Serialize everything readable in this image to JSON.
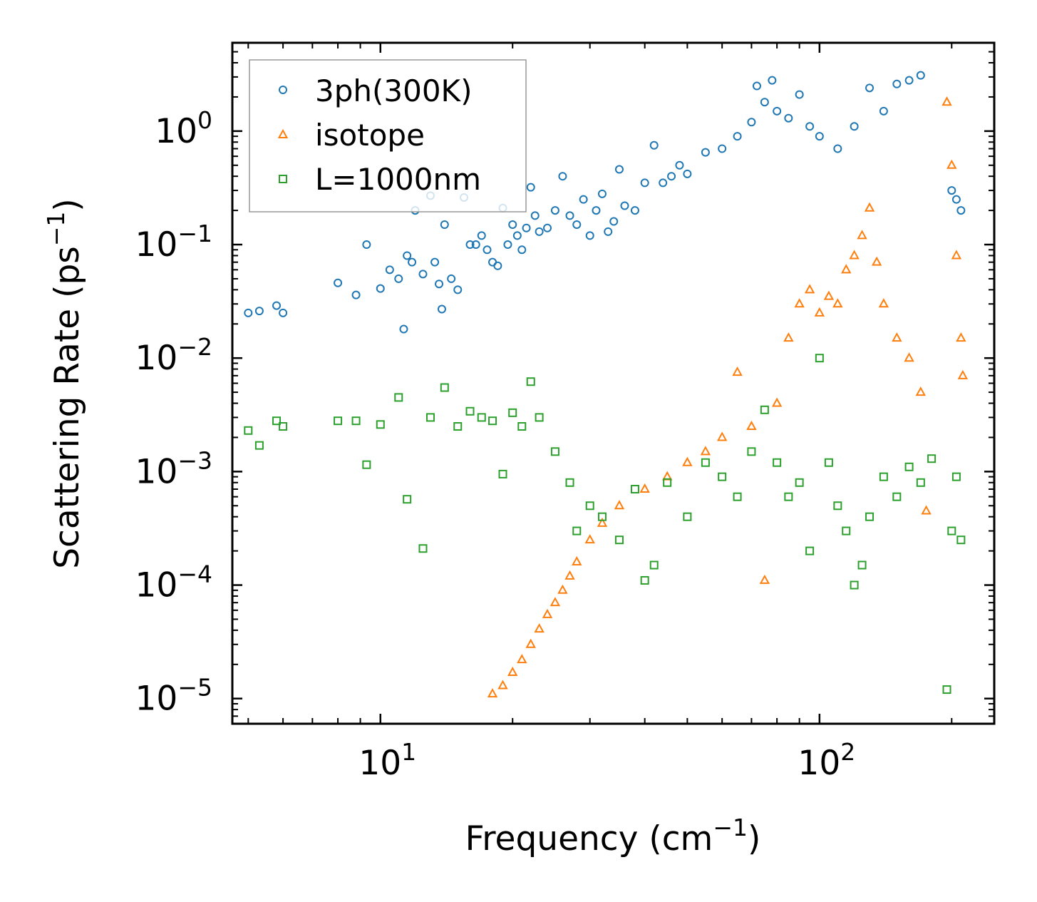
{
  "chart_data": {
    "type": "scatter",
    "title": "",
    "xlabel": "Frequency (cm",
    "xlabel_sup": "−1",
    "xlabel_end": ")",
    "ylabel": "Scattering Rate (ps",
    "ylabel_sup": "−1",
    "ylabel_end": ")",
    "xscale": "log",
    "yscale": "log",
    "xlim": [
      4.6,
      250
    ],
    "ylim": [
      6e-06,
      6
    ],
    "x_ticks": [
      {
        "value": 10,
        "base": "10",
        "exp": "1"
      },
      {
        "value": 100,
        "base": "10",
        "exp": "2"
      }
    ],
    "y_ticks": [
      {
        "value": 1,
        "base": "10",
        "exp": "0"
      },
      {
        "value": 0.1,
        "base": "10",
        "exp": "−1"
      },
      {
        "value": 0.01,
        "base": "10",
        "exp": "−2"
      },
      {
        "value": 0.001,
        "base": "10",
        "exp": "−3"
      },
      {
        "value": 0.0001,
        "base": "10",
        "exp": "−4"
      },
      {
        "value": 1e-05,
        "base": "10",
        "exp": "−5"
      }
    ],
    "legend_position": "top-left",
    "series": [
      {
        "name": "3ph(300K)",
        "marker": "circle",
        "color": "#1f77b4",
        "points": [
          [
            5,
            0.025
          ],
          [
            5.3,
            0.026
          ],
          [
            5.8,
            0.029
          ],
          [
            6,
            0.025
          ],
          [
            8,
            0.046
          ],
          [
            8.8,
            0.036
          ],
          [
            9.3,
            0.1
          ],
          [
            10,
            0.041
          ],
          [
            10.5,
            0.06
          ],
          [
            11,
            0.05
          ],
          [
            11.3,
            0.018
          ],
          [
            11.5,
            0.08
          ],
          [
            11.8,
            0.07
          ],
          [
            12,
            0.2
          ],
          [
            12.5,
            0.055
          ],
          [
            13,
            0.27
          ],
          [
            13.3,
            0.07
          ],
          [
            13.6,
            0.045
          ],
          [
            13.8,
            0.027
          ],
          [
            14,
            0.15
          ],
          [
            14.5,
            0.05
          ],
          [
            15,
            0.04
          ],
          [
            15.5,
            0.26
          ],
          [
            16,
            0.1
          ],
          [
            16.5,
            0.1
          ],
          [
            17,
            0.12
          ],
          [
            17.5,
            0.09
          ],
          [
            18,
            0.07
          ],
          [
            18.5,
            0.065
          ],
          [
            19,
            0.21
          ],
          [
            19.5,
            0.1
          ],
          [
            20,
            0.15
          ],
          [
            20.5,
            0.12
          ],
          [
            21,
            0.09
          ],
          [
            21.5,
            0.14
          ],
          [
            22,
            0.32
          ],
          [
            22.5,
            0.18
          ],
          [
            23,
            0.13
          ],
          [
            24,
            0.14
          ],
          [
            25,
            0.2
          ],
          [
            26,
            0.4
          ],
          [
            27,
            0.18
          ],
          [
            28,
            0.15
          ],
          [
            29,
            0.25
          ],
          [
            30,
            0.12
          ],
          [
            31,
            0.2
          ],
          [
            32,
            0.28
          ],
          [
            33,
            0.13
          ],
          [
            34,
            0.16
          ],
          [
            35,
            0.46
          ],
          [
            36,
            0.22
          ],
          [
            38,
            0.2
          ],
          [
            40,
            0.35
          ],
          [
            42,
            0.75
          ],
          [
            44,
            0.35
          ],
          [
            46,
            0.4
          ],
          [
            48,
            0.5
          ],
          [
            50,
            0.42
          ],
          [
            55,
            0.65
          ],
          [
            60,
            0.7
          ],
          [
            65,
            0.9
          ],
          [
            70,
            1.2
          ],
          [
            72,
            2.5
          ],
          [
            75,
            1.8
          ],
          [
            78,
            2.8
          ],
          [
            80,
            1.5
          ],
          [
            85,
            1.3
          ],
          [
            90,
            2.1
          ],
          [
            95,
            1.1
          ],
          [
            100,
            0.9
          ],
          [
            110,
            0.7
          ],
          [
            120,
            1.1
          ],
          [
            130,
            2.4
          ],
          [
            140,
            1.5
          ],
          [
            150,
            2.6
          ],
          [
            160,
            2.8
          ],
          [
            170,
            3.1
          ],
          [
            200,
            0.3
          ],
          [
            205,
            0.25
          ],
          [
            210,
            0.2
          ]
        ]
      },
      {
        "name": "isotope",
        "marker": "triangle",
        "color": "#ff7f0e",
        "points": [
          [
            18,
            1.1e-05
          ],
          [
            19,
            1.3e-05
          ],
          [
            20,
            1.7e-05
          ],
          [
            21,
            2.2e-05
          ],
          [
            22,
            3e-05
          ],
          [
            23,
            4.1e-05
          ],
          [
            24,
            5.5e-05
          ],
          [
            25,
            7e-05
          ],
          [
            26,
            9e-05
          ],
          [
            27,
            0.00012
          ],
          [
            28,
            0.00016
          ],
          [
            30,
            0.00025
          ],
          [
            32,
            0.00035
          ],
          [
            35,
            0.0005
          ],
          [
            40,
            0.0007
          ],
          [
            45,
            0.0009
          ],
          [
            50,
            0.0012
          ],
          [
            55,
            0.0015
          ],
          [
            60,
            0.002
          ],
          [
            65,
            0.0075
          ],
          [
            70,
            0.0025
          ],
          [
            75,
            0.00011
          ],
          [
            80,
            0.004
          ],
          [
            85,
            0.015
          ],
          [
            90,
            0.03
          ],
          [
            95,
            0.04
          ],
          [
            100,
            0.025
          ],
          [
            105,
            0.035
          ],
          [
            110,
            0.03
          ],
          [
            115,
            0.06
          ],
          [
            120,
            0.08
          ],
          [
            125,
            0.12
          ],
          [
            130,
            0.21
          ],
          [
            135,
            0.07
          ],
          [
            140,
            0.03
          ],
          [
            150,
            0.015
          ],
          [
            160,
            0.01
          ],
          [
            170,
            0.005
          ],
          [
            175,
            0.00045
          ],
          [
            195,
            1.8
          ],
          [
            200,
            0.5
          ],
          [
            205,
            0.08
          ],
          [
            210,
            0.015
          ],
          [
            212,
            0.007
          ]
        ]
      },
      {
        "name": "L=1000nm",
        "marker": "square",
        "color": "#2ca02c",
        "points": [
          [
            5,
            0.0023
          ],
          [
            5.3,
            0.0017
          ],
          [
            5.8,
            0.0028
          ],
          [
            6,
            0.0025
          ],
          [
            8,
            0.0028
          ],
          [
            8.8,
            0.0028
          ],
          [
            9.3,
            0.00115
          ],
          [
            10,
            0.0026
          ],
          [
            11,
            0.0045
          ],
          [
            11.5,
            0.00057
          ],
          [
            12.5,
            0.00021
          ],
          [
            13,
            0.003
          ],
          [
            14,
            0.0055
          ],
          [
            15,
            0.0025
          ],
          [
            16,
            0.0034
          ],
          [
            17,
            0.003
          ],
          [
            18,
            0.0028
          ],
          [
            19,
            0.00095
          ],
          [
            20,
            0.0033
          ],
          [
            21,
            0.0025
          ],
          [
            22,
            0.0062
          ],
          [
            23,
            0.003
          ],
          [
            25,
            0.0015
          ],
          [
            27,
            0.0008
          ],
          [
            28,
            0.0003
          ],
          [
            30,
            0.0005
          ],
          [
            32,
            0.0004
          ],
          [
            35,
            0.00025
          ],
          [
            38,
            0.0007
          ],
          [
            40,
            0.00011
          ],
          [
            42,
            0.00015
          ],
          [
            45,
            0.0008
          ],
          [
            50,
            0.0004
          ],
          [
            55,
            0.0012
          ],
          [
            60,
            0.0009
          ],
          [
            65,
            0.0006
          ],
          [
            70,
            0.0015
          ],
          [
            75,
            0.0035
          ],
          [
            80,
            0.0012
          ],
          [
            85,
            0.0006
          ],
          [
            90,
            0.0008
          ],
          [
            95,
            0.0002
          ],
          [
            100,
            0.01
          ],
          [
            105,
            0.0012
          ],
          [
            110,
            0.0005
          ],
          [
            115,
            0.0003
          ],
          [
            120,
            0.0001
          ],
          [
            125,
            0.00015
          ],
          [
            130,
            0.0004
          ],
          [
            140,
            0.0009
          ],
          [
            150,
            0.0006
          ],
          [
            160,
            0.0011
          ],
          [
            170,
            0.0008
          ],
          [
            180,
            0.0013
          ],
          [
            195,
            1.2e-05
          ],
          [
            200,
            0.0003
          ],
          [
            205,
            0.0009
          ],
          [
            210,
            0.00025
          ]
        ]
      }
    ],
    "colors": {
      "3ph": "#1f77b4",
      "isotope": "#ff7f0e",
      "boundary": "#2ca02c"
    }
  }
}
